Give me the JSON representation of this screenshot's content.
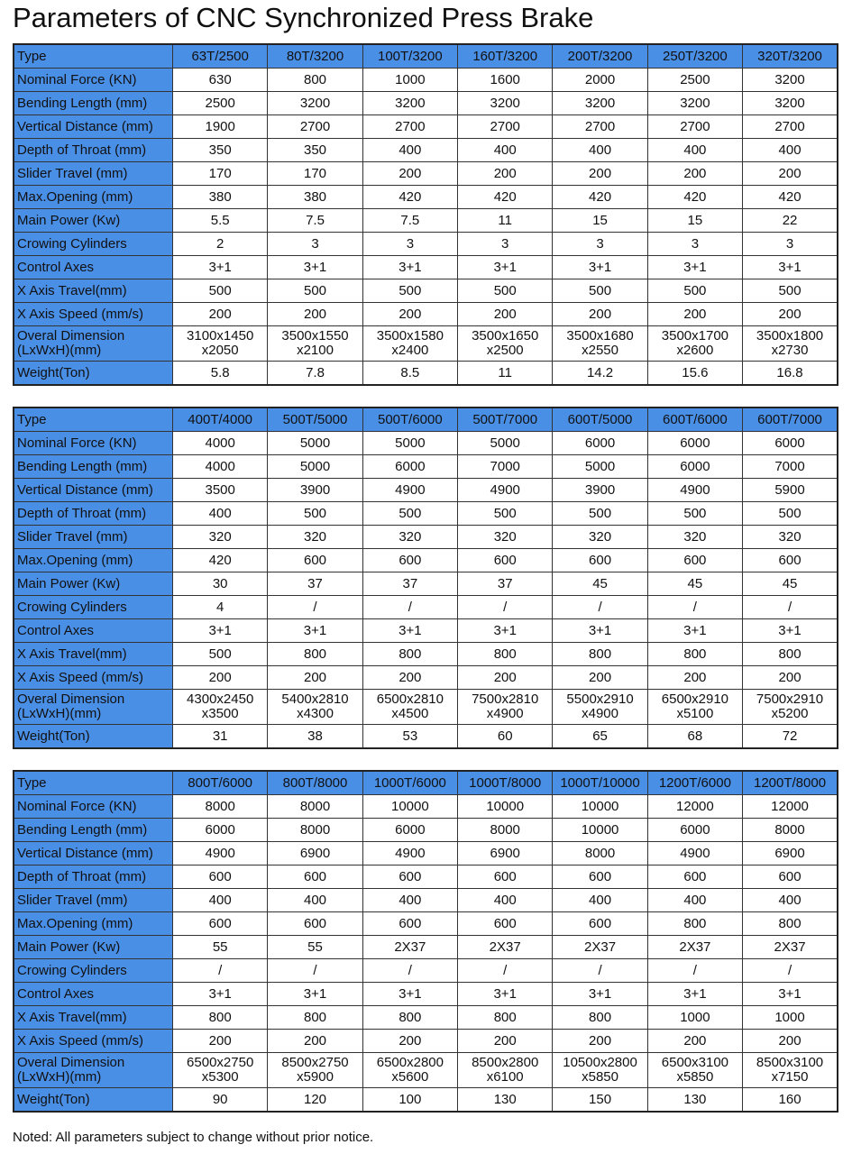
{
  "title": "Parameters of CNC Synchronized Press Brake",
  "row_labels": [
    "Type",
    "Nominal Force (KN)",
    "Bending Length (mm)",
    "Vertical Distance (mm)",
    "Depth of Throat (mm)",
    "Slider Travel (mm)",
    "Max.Opening (mm)",
    "Main Power (Kw)",
    "Crowing Cylinders",
    "Control Axes",
    "X Axis Travel(mm)",
    "X Axis Speed (mm/s)",
    "Overal Dimension\n(LxWxH)(mm)",
    "Weight(Ton)"
  ],
  "colors": {
    "header_blue": "#4a8fe6"
  },
  "tables": [
    {
      "columns": [
        [
          "63T/2500",
          "630",
          "2500",
          "1900",
          "350",
          "170",
          "380",
          "5.5",
          "2",
          "3+1",
          "500",
          "200",
          "3100x1450\nx2050",
          "5.8"
        ],
        [
          "80T/3200",
          "800",
          "3200",
          "2700",
          "350",
          "170",
          "380",
          "7.5",
          "3",
          "3+1",
          "500",
          "200",
          "3500x1550\nx2100",
          "7.8"
        ],
        [
          "100T/3200",
          "1000",
          "3200",
          "2700",
          "400",
          "200",
          "420",
          "7.5",
          "3",
          "3+1",
          "500",
          "200",
          "3500x1580\nx2400",
          "8.5"
        ],
        [
          "160T/3200",
          "1600",
          "3200",
          "2700",
          "400",
          "200",
          "420",
          "11",
          "3",
          "3+1",
          "500",
          "200",
          "3500x1650\nx2500",
          "11"
        ],
        [
          "200T/3200",
          "2000",
          "3200",
          "2700",
          "400",
          "200",
          "420",
          "15",
          "3",
          "3+1",
          "500",
          "200",
          "3500x1680\nx2550",
          "14.2"
        ],
        [
          "250T/3200",
          "2500",
          "3200",
          "2700",
          "400",
          "200",
          "420",
          "15",
          "3",
          "3+1",
          "500",
          "200",
          "3500x1700\nx2600",
          "15.6"
        ],
        [
          "320T/3200",
          "3200",
          "3200",
          "2700",
          "400",
          "200",
          "420",
          "22",
          "3",
          "3+1",
          "500",
          "200",
          "3500x1800\nx2730",
          "16.8"
        ]
      ]
    },
    {
      "columns": [
        [
          "400T/4000",
          "4000",
          "4000",
          "3500",
          "400",
          "320",
          "420",
          "30",
          "4",
          "3+1",
          "500",
          "200",
          "4300x2450\nx3500",
          "31"
        ],
        [
          "500T/5000",
          "5000",
          "5000",
          "3900",
          "500",
          "320",
          "600",
          "37",
          "/",
          "3+1",
          "800",
          "200",
          "5400x2810\nx4300",
          "38"
        ],
        [
          "500T/6000",
          "5000",
          "6000",
          "4900",
          "500",
          "320",
          "600",
          "37",
          "/",
          "3+1",
          "800",
          "200",
          "6500x2810\nx4500",
          "53"
        ],
        [
          "500T/7000",
          "5000",
          "7000",
          "4900",
          "500",
          "320",
          "600",
          "37",
          "/",
          "3+1",
          "800",
          "200",
          "7500x2810\nx4900",
          "60"
        ],
        [
          "600T/5000",
          "6000",
          "5000",
          "3900",
          "500",
          "320",
          "600",
          "45",
          "/",
          "3+1",
          "800",
          "200",
          "5500x2910\nx4900",
          "65"
        ],
        [
          "600T/6000",
          "6000",
          "6000",
          "4900",
          "500",
          "320",
          "600",
          "45",
          "/",
          "3+1",
          "800",
          "200",
          "6500x2910\nx5100",
          "68"
        ],
        [
          "600T/7000",
          "6000",
          "7000",
          "5900",
          "500",
          "320",
          "600",
          "45",
          "/",
          "3+1",
          "800",
          "200",
          "7500x2910\nx5200",
          "72"
        ]
      ]
    },
    {
      "columns": [
        [
          "800T/6000",
          "8000",
          "6000",
          "4900",
          "600",
          "400",
          "600",
          "55",
          "/",
          "3+1",
          "800",
          "200",
          "6500x2750\nx5300",
          "90"
        ],
        [
          "800T/8000",
          "8000",
          "8000",
          "6900",
          "600",
          "400",
          "600",
          "55",
          "/",
          "3+1",
          "800",
          "200",
          "8500x2750\nx5900",
          "120"
        ],
        [
          "1000T/6000",
          "10000",
          "6000",
          "4900",
          "600",
          "400",
          "600",
          "2X37",
          "/",
          "3+1",
          "800",
          "200",
          "6500x2800\nx5600",
          "100"
        ],
        [
          "1000T/8000",
          "10000",
          "8000",
          "6900",
          "600",
          "400",
          "600",
          "2X37",
          "/",
          "3+1",
          "800",
          "200",
          "8500x2800\nx6100",
          "130"
        ],
        [
          "1000T/10000",
          "10000",
          "10000",
          "8000",
          "600",
          "400",
          "600",
          "2X37",
          "/",
          "3+1",
          "800",
          "200",
          "10500x2800\nx5850",
          "150"
        ],
        [
          "1200T/6000",
          "12000",
          "6000",
          "4900",
          "600",
          "400",
          "800",
          "2X37",
          "/",
          "3+1",
          "1000",
          "200",
          "6500x3100\nx5850",
          "130"
        ],
        [
          "1200T/8000",
          "12000",
          "8000",
          "6900",
          "600",
          "400",
          "800",
          "2X37",
          "/",
          "3+1",
          "1000",
          "200",
          "8500x3100\nx7150",
          "160"
        ]
      ]
    }
  ],
  "note": "Noted: All parameters subject to change without prior notice."
}
